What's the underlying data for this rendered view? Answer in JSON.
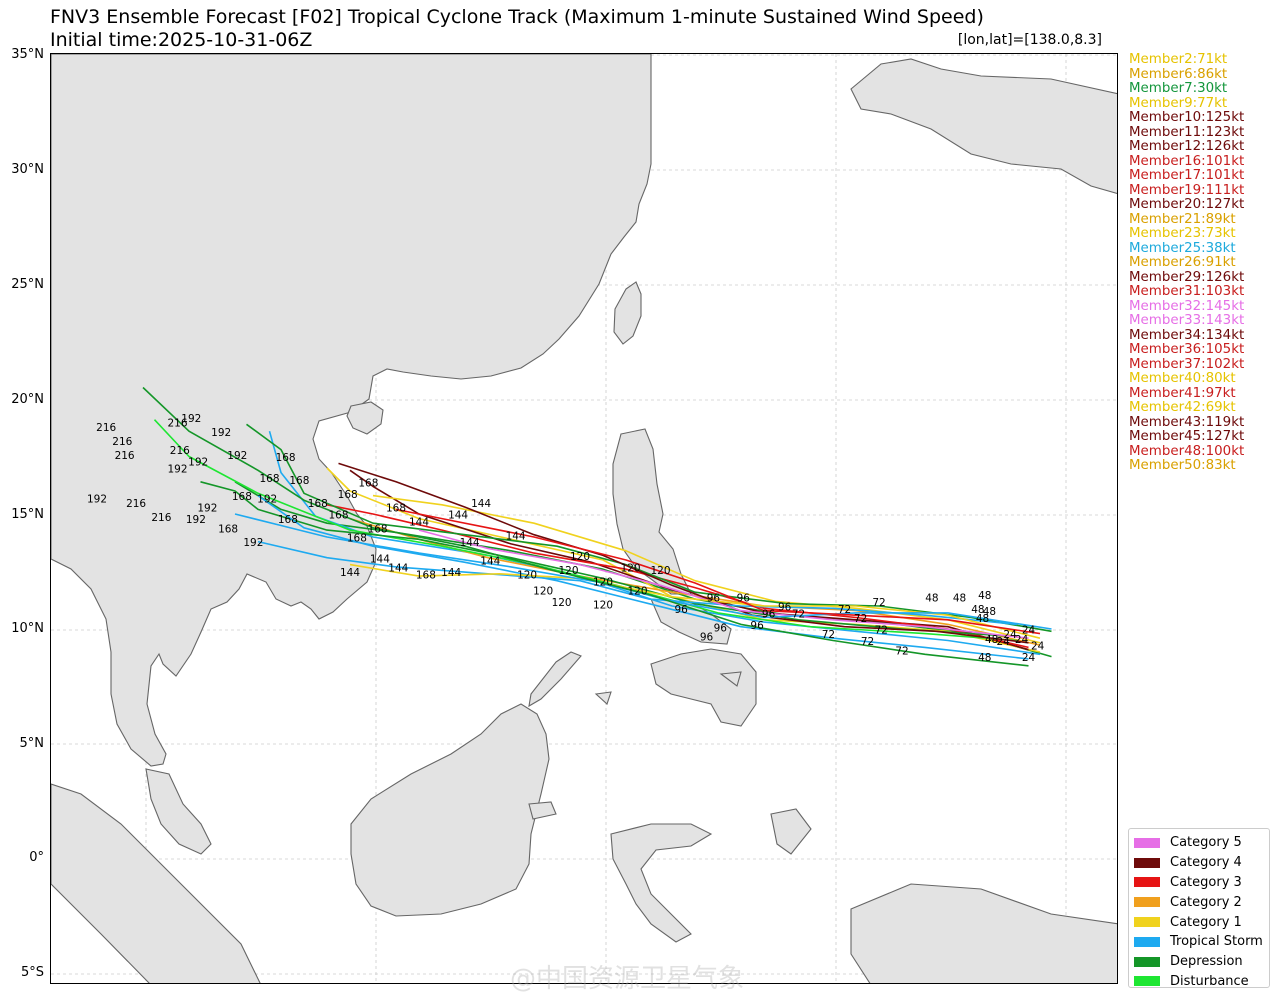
{
  "header": {
    "title": "FNV3 Ensemble Forecast [F02] Tropical Cyclone Track (Maximum 1-minute Sustained Wind Speed)",
    "subtitle": "Initial time:2025-10-31-06Z",
    "center_note": "[lon,lat]=[138.0,8.3]"
  },
  "axis": {
    "lat_labels": [
      "35°N",
      "30°N",
      "25°N",
      "20°N",
      "15°N",
      "10°N",
      "5°N",
      "0°",
      "5°S"
    ]
  },
  "members": [
    {
      "label": "Member2:71kt",
      "color": "#e6c300"
    },
    {
      "label": "Member6:86kt",
      "color": "#d9a000"
    },
    {
      "label": "Member7:30kt",
      "color": "#14963c"
    },
    {
      "label": "Member9:77kt",
      "color": "#e6c300"
    },
    {
      "label": "Member10:125kt",
      "color": "#6e0a0a"
    },
    {
      "label": "Member11:123kt",
      "color": "#6e0a0a"
    },
    {
      "label": "Member12:126kt",
      "color": "#6e0a0a"
    },
    {
      "label": "Member16:101kt",
      "color": "#c81e1e"
    },
    {
      "label": "Member17:101kt",
      "color": "#c81e1e"
    },
    {
      "label": "Member19:111kt",
      "color": "#c81e1e"
    },
    {
      "label": "Member20:127kt",
      "color": "#6e0a0a"
    },
    {
      "label": "Member21:89kt",
      "color": "#d9a000"
    },
    {
      "label": "Member23:73kt",
      "color": "#e6c300"
    },
    {
      "label": "Member25:38kt",
      "color": "#1eaadc"
    },
    {
      "label": "Member26:91kt",
      "color": "#d9a000"
    },
    {
      "label": "Member29:126kt",
      "color": "#6e0a0a"
    },
    {
      "label": "Member31:103kt",
      "color": "#c81e1e"
    },
    {
      "label": "Member32:145kt",
      "color": "#e66ee6"
    },
    {
      "label": "Member33:143kt",
      "color": "#e66ee6"
    },
    {
      "label": "Member34:134kt",
      "color": "#6e0a0a"
    },
    {
      "label": "Member36:105kt",
      "color": "#c81e1e"
    },
    {
      "label": "Member37:102kt",
      "color": "#c81e1e"
    },
    {
      "label": "Member40:80kt",
      "color": "#e6c300"
    },
    {
      "label": "Member41:97kt",
      "color": "#c81e1e"
    },
    {
      "label": "Member42:69kt",
      "color": "#e6c300"
    },
    {
      "label": "Member43:119kt",
      "color": "#6e0a0a"
    },
    {
      "label": "Member45:127kt",
      "color": "#6e0a0a"
    },
    {
      "label": "Member48:100kt",
      "color": "#c81e1e"
    },
    {
      "label": "Member50:83kt",
      "color": "#d9a000"
    }
  ],
  "legend": [
    {
      "label": "Category 5",
      "color": "#e66ee6"
    },
    {
      "label": "Category 4",
      "color": "#6e0a0a"
    },
    {
      "label": "Category 3",
      "color": "#e61414"
    },
    {
      "label": "Category 2",
      "color": "#f0a01e"
    },
    {
      "label": "Category 1",
      "color": "#f0d21e"
    },
    {
      "label": "Tropical Storm",
      "color": "#1eaaf0"
    },
    {
      "label": "Depression",
      "color": "#149628"
    },
    {
      "label": "Disturbance",
      "color": "#1ee632"
    }
  ],
  "tracks": [
    {
      "color": "#149628",
      "points": [
        [
          139.5,
          8.8
        ],
        [
          136,
          9.8
        ],
        [
          132,
          10.3
        ],
        [
          128,
          10.6
        ],
        [
          124,
          11.3
        ],
        [
          120,
          12.6
        ],
        [
          116,
          13.4
        ],
        [
          111,
          14.2
        ],
        [
          108,
          14.6
        ],
        [
          106,
          15.2
        ],
        [
          104,
          16.4
        ]
      ]
    },
    {
      "color": "#1eaaf0",
      "points": [
        [
          139,
          8.9
        ],
        [
          135,
          9.5
        ],
        [
          131,
          9.9
        ],
        [
          127,
          10.3
        ],
        [
          123,
          11.0
        ],
        [
          119,
          12.3
        ],
        [
          115,
          13.2
        ],
        [
          110,
          14.0
        ],
        [
          107.5,
          14.9
        ],
        [
          106,
          16.8
        ],
        [
          105.5,
          18.6
        ]
      ]
    },
    {
      "color": "#f0d21e",
      "points": [
        [
          139,
          9.0
        ],
        [
          135,
          9.9
        ],
        [
          131,
          10.2
        ],
        [
          127,
          10.4
        ],
        [
          123,
          11.4
        ],
        [
          120,
          13.0
        ],
        [
          116,
          13.9
        ],
        [
          112,
          14.8
        ],
        [
          109,
          16.0
        ],
        [
          108,
          17.0
        ]
      ]
    },
    {
      "color": "#6e0a0a",
      "points": [
        [
          138.5,
          9.1
        ],
        [
          135,
          10.1
        ],
        [
          131,
          10.4
        ],
        [
          127,
          10.7
        ],
        [
          123,
          11.7
        ],
        [
          119.5,
          12.9
        ],
        [
          116,
          13.7
        ],
        [
          112,
          15.0
        ],
        [
          110,
          16.2
        ],
        [
          109,
          16.9
        ]
      ]
    },
    {
      "color": "#e61414",
      "points": [
        [
          138.5,
          9.2
        ],
        [
          135,
          10.0
        ],
        [
          131,
          10.5
        ],
        [
          127,
          10.9
        ],
        [
          124,
          11.8
        ],
        [
          121,
          12.6
        ],
        [
          117,
          13.3
        ],
        [
          113,
          14.3
        ],
        [
          110,
          15.0
        ],
        [
          108,
          15.4
        ]
      ]
    },
    {
      "color": "#f0a01e",
      "points": [
        [
          139,
          9.3
        ],
        [
          135,
          10.2
        ],
        [
          131,
          10.8
        ],
        [
          127,
          11.0
        ],
        [
          123,
          11.6
        ],
        [
          119,
          12.3
        ],
        [
          115,
          13.1
        ],
        [
          112,
          13.9
        ],
        [
          109,
          14.8
        ]
      ]
    },
    {
      "color": "#1ee632",
      "points": [
        [
          138,
          9.5
        ],
        [
          134,
          9.8
        ],
        [
          129,
          10.1
        ],
        [
          125,
          10.7
        ],
        [
          121,
          11.8
        ],
        [
          117,
          12.8
        ],
        [
          113,
          13.6
        ],
        [
          109,
          14.3
        ],
        [
          105,
          15.9
        ],
        [
          102,
          17.5
        ],
        [
          100.5,
          19.1
        ]
      ]
    },
    {
      "color": "#149628",
      "points": [
        [
          137.5,
          9.7
        ],
        [
          133,
          10.0
        ],
        [
          128.5,
          10.4
        ],
        [
          124,
          11.1
        ],
        [
          120,
          12.2
        ],
        [
          116,
          13.1
        ],
        [
          112,
          13.9
        ],
        [
          108,
          14.3
        ],
        [
          105,
          15.2
        ],
        [
          104,
          16.0
        ],
        [
          102.5,
          16.4
        ]
      ]
    },
    {
      "color": "#1eaaf0",
      "points": [
        [
          138.5,
          8.7
        ],
        [
          134,
          9.2
        ],
        [
          130,
          9.6
        ],
        [
          126,
          10.1
        ],
        [
          122,
          11.1
        ],
        [
          118,
          12.1
        ],
        [
          114,
          12.9
        ],
        [
          110,
          13.6
        ],
        [
          107,
          14.4
        ],
        [
          105,
          15.8
        ]
      ]
    },
    {
      "color": "#f0d21e",
      "points": [
        [
          139,
          9.4
        ],
        [
          135,
          10.4
        ],
        [
          131,
          10.9
        ],
        [
          127.5,
          11.2
        ],
        [
          124,
          12.1
        ],
        [
          121,
          13.4
        ],
        [
          117,
          14.6
        ],
        [
          113,
          15.4
        ],
        [
          110,
          15.8
        ]
      ]
    },
    {
      "color": "#149628",
      "points": [
        [
          139.5,
          9.9
        ],
        [
          136,
          10.5
        ],
        [
          132,
          11.0
        ],
        [
          128,
          11.1
        ],
        [
          124,
          11.6
        ],
        [
          121,
          12.8
        ],
        [
          118,
          13.6
        ],
        [
          114,
          14.1
        ],
        [
          110,
          14.6
        ],
        [
          107,
          15.9
        ],
        [
          106,
          17.8
        ],
        [
          104.5,
          18.9
        ]
      ]
    },
    {
      "color": "#1eaaf0",
      "points": [
        [
          138,
          10.2
        ],
        [
          134,
          10.6
        ],
        [
          130,
          10.9
        ],
        [
          126,
          11.0
        ],
        [
          122,
          11.3
        ],
        [
          119,
          12.1
        ],
        [
          115,
          12.4
        ],
        [
          111,
          12.7
        ],
        [
          108,
          13.1
        ],
        [
          105,
          13.8
        ]
      ]
    },
    {
      "color": "#6e0a0a",
      "points": [
        [
          138.5,
          9.4
        ],
        [
          134.5,
          9.9
        ],
        [
          130.5,
          10.1
        ],
        [
          126.5,
          10.6
        ],
        [
          123,
          11.9
        ],
        [
          120,
          13.2
        ],
        [
          117,
          14.1
        ],
        [
          114,
          15.3
        ],
        [
          111,
          16.4
        ],
        [
          108.5,
          17.2
        ]
      ]
    },
    {
      "color": "#e66ee6",
      "points": [
        [
          138.5,
          9.6
        ],
        [
          134,
          10.1
        ],
        [
          130,
          10.4
        ],
        [
          126,
          10.8
        ],
        [
          122.5,
          11.9
        ],
        [
          119,
          12.8
        ],
        [
          115,
          13.5
        ],
        [
          112,
          14.3
        ]
      ]
    },
    {
      "color": "#f0d21e",
      "points": [
        [
          139,
          9.6
        ],
        [
          135,
          10.6
        ],
        [
          131,
          11.0
        ],
        [
          127,
          11.0
        ],
        [
          123,
          11.4
        ],
        [
          119,
          12.2
        ],
        [
          115.5,
          12.4
        ],
        [
          112,
          12.3
        ],
        [
          109,
          12.8
        ]
      ]
    },
    {
      "color": "#1eaaf0",
      "points": [
        [
          139.5,
          10.0
        ],
        [
          135,
          10.7
        ],
        [
          131,
          10.7
        ],
        [
          127,
          10.5
        ],
        [
          123,
          11.2
        ],
        [
          120,
          12.0
        ],
        [
          116,
          12.7
        ],
        [
          112,
          13.3
        ],
        [
          108,
          14.0
        ],
        [
          106,
          14.5
        ],
        [
          104,
          15.0
        ]
      ]
    },
    {
      "color": "#149628",
      "points": [
        [
          138.5,
          8.4
        ],
        [
          134,
          8.9
        ],
        [
          130,
          9.5
        ],
        [
          126,
          10.2
        ],
        [
          122,
          11.5
        ],
        [
          118,
          12.5
        ],
        [
          114,
          13.6
        ],
        [
          110,
          14.4
        ],
        [
          107,
          15.6
        ],
        [
          105,
          16.9
        ],
        [
          102,
          18.6
        ],
        [
          100,
          20.5
        ]
      ]
    },
    {
      "color": "#e61414",
      "points": [
        [
          139,
          9.8
        ],
        [
          135,
          10.4
        ],
        [
          131,
          10.6
        ],
        [
          127,
          10.8
        ],
        [
          124,
          12.0
        ],
        [
          121,
          13.0
        ],
        [
          117,
          14.0
        ],
        [
          113,
          14.8
        ],
        [
          111,
          15.2
        ]
      ]
    }
  ],
  "time_labels": [
    {
      "text": "48",
      "lon": 134.3,
      "lat": 11.2
    },
    {
      "text": "48",
      "lon": 135.5,
      "lat": 11.2
    },
    {
      "text": "48",
      "lon": 136.6,
      "lat": 11.3
    },
    {
      "text": "48",
      "lon": 136.8,
      "lat": 10.6
    },
    {
      "text": "48",
      "lon": 136.5,
      "lat": 10.3
    },
    {
      "text": "48",
      "lon": 136.9,
      "lat": 9.4
    },
    {
      "text": "48",
      "lon": 136.6,
      "lat": 8.6
    },
    {
      "text": "48",
      "lon": 136.3,
      "lat": 10.7
    },
    {
      "text": "24",
      "lon": 138.5,
      "lat": 9.8
    },
    {
      "text": "24",
      "lon": 138.9,
      "lat": 9.1
    },
    {
      "text": "24",
      "lon": 138.2,
      "lat": 9.4
    },
    {
      "text": "24",
      "lon": 138.5,
      "lat": 8.6
    },
    {
      "text": "24",
      "lon": 137.7,
      "lat": 9.6
    },
    {
      "text": "24",
      "lon": 137.4,
      "lat": 9.3
    },
    {
      "text": "72",
      "lon": 132.0,
      "lat": 11.0
    },
    {
      "text": "72",
      "lon": 131.2,
      "lat": 10.3
    },
    {
      "text": "72",
      "lon": 132.1,
      "lat": 9.8
    },
    {
      "text": "72",
      "lon": 131.5,
      "lat": 9.3
    },
    {
      "text": "72",
      "lon": 129.8,
      "lat": 9.6
    },
    {
      "text": "72",
      "lon": 133.0,
      "lat": 8.9
    },
    {
      "text": "72",
      "lon": 128.5,
      "lat": 10.5
    },
    {
      "text": "72",
      "lon": 130.5,
      "lat": 10.7
    },
    {
      "text": "96",
      "lon": 124.8,
      "lat": 11.2
    },
    {
      "text": "96",
      "lon": 126.1,
      "lat": 11.2
    },
    {
      "text": "96",
      "lon": 127.9,
      "lat": 10.8
    },
    {
      "text": "96",
      "lon": 125.1,
      "lat": 9.9
    },
    {
      "text": "96",
      "lon": 126.7,
      "lat": 10.0
    },
    {
      "text": "96",
      "lon": 124.5,
      "lat": 9.5
    },
    {
      "text": "96",
      "lon": 123.4,
      "lat": 10.7
    },
    {
      "text": "96",
      "lon": 127.2,
      "lat": 10.5
    },
    {
      "text": "120",
      "lon": 121.2,
      "lat": 12.5
    },
    {
      "text": "120",
      "lon": 122.5,
      "lat": 12.4
    },
    {
      "text": "120",
      "lon": 120.0,
      "lat": 11.9
    },
    {
      "text": "120",
      "lon": 118.5,
      "lat": 12.4
    },
    {
      "text": "120",
      "lon": 116.7,
      "lat": 12.2
    },
    {
      "text": "120",
      "lon": 119.0,
      "lat": 13.0
    },
    {
      "text": "120",
      "lon": 121.5,
      "lat": 11.5
    },
    {
      "text": "120",
      "lon": 118.2,
      "lat": 11.0
    },
    {
      "text": "120",
      "lon": 117.4,
      "lat": 11.5
    },
    {
      "text": "120",
      "lon": 120.0,
      "lat": 10.9
    },
    {
      "text": "144",
      "lon": 112.0,
      "lat": 14.5
    },
    {
      "text": "144",
      "lon": 113.7,
      "lat": 14.8
    },
    {
      "text": "144",
      "lon": 114.2,
      "lat": 13.6
    },
    {
      "text": "144",
      "lon": 114.7,
      "lat": 15.3
    },
    {
      "text": "144",
      "lon": 116.2,
      "lat": 13.9
    },
    {
      "text": "144",
      "lon": 115.1,
      "lat": 12.8
    },
    {
      "text": "144",
      "lon": 110.3,
      "lat": 12.9
    },
    {
      "text": "144",
      "lon": 111.1,
      "lat": 12.5
    },
    {
      "text": "144",
      "lon": 109.0,
      "lat": 12.3
    },
    {
      "text": "144",
      "lon": 113.4,
      "lat": 12.3
    },
    {
      "text": "168",
      "lon": 105.5,
      "lat": 16.4
    },
    {
      "text": "168",
      "lon": 106.8,
      "lat": 16.3
    },
    {
      "text": "168",
      "lon": 107.6,
      "lat": 15.3
    },
    {
      "text": "168",
      "lon": 109.8,
      "lat": 16.2
    },
    {
      "text": "168",
      "lon": 108.9,
      "lat": 15.7
    },
    {
      "text": "168",
      "lon": 106.3,
      "lat": 14.6
    },
    {
      "text": "168",
      "lon": 108.5,
      "lat": 14.8
    },
    {
      "text": "168",
      "lon": 110.2,
      "lat": 14.2
    },
    {
      "text": "168",
      "lon": 111.0,
      "lat": 15.1
    },
    {
      "text": "168",
      "lon": 104.3,
      "lat": 15.6
    },
    {
      "text": "168",
      "lon": 103.7,
      "lat": 14.2
    },
    {
      "text": "168",
      "lon": 106.2,
      "lat": 17.3
    },
    {
      "text": "168",
      "lon": 112.3,
      "lat": 12.2
    },
    {
      "text": "168",
      "lon": 109.3,
      "lat": 13.8
    },
    {
      "text": "192",
      "lon": 102.1,
      "lat": 19.0
    },
    {
      "text": "192",
      "lon": 102.4,
      "lat": 17.1
    },
    {
      "text": "192",
      "lon": 101.5,
      "lat": 16.8
    },
    {
      "text": "192",
      "lon": 102.8,
      "lat": 15.1
    },
    {
      "text": "192",
      "lon": 104.1,
      "lat": 17.4
    },
    {
      "text": "192",
      "lon": 105.4,
      "lat": 15.5
    },
    {
      "text": "192",
      "lon": 98.0,
      "lat": 15.5
    },
    {
      "text": "192",
      "lon": 102.3,
      "lat": 14.6
    },
    {
      "text": "192",
      "lon": 104.8,
      "lat": 13.6
    },
    {
      "text": "192",
      "lon": 103.4,
      "lat": 18.4
    },
    {
      "text": "216",
      "lon": 98.4,
      "lat": 18.6
    },
    {
      "text": "216",
      "lon": 99.2,
      "lat": 17.4
    },
    {
      "text": "216",
      "lon": 100.8,
      "lat": 14.7
    },
    {
      "text": "216",
      "lon": 99.7,
      "lat": 15.3
    },
    {
      "text": "216",
      "lon": 101.5,
      "lat": 18.8
    },
    {
      "text": "216",
      "lon": 101.6,
      "lat": 17.6
    },
    {
      "text": "216",
      "lon": 99.1,
      "lat": 18.0
    }
  ],
  "watermark": "@中国资源卫星气象"
}
